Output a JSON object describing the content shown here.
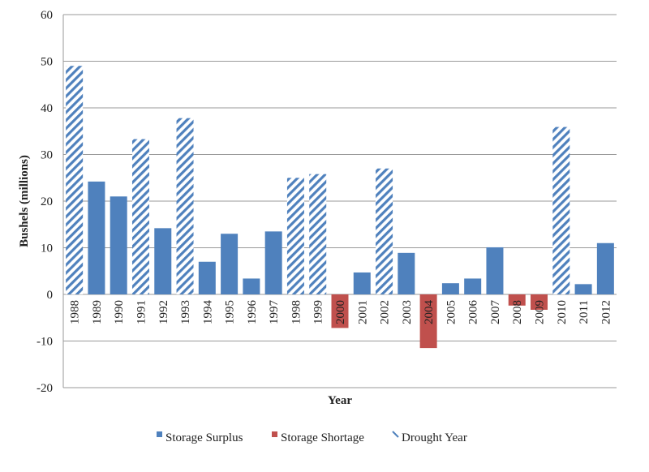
{
  "chart_data": {
    "type": "bar",
    "title": "",
    "xlabel": "Year",
    "ylabel": "Bushels (millions)",
    "ylim": [
      -20,
      60
    ],
    "yticks": [
      60,
      50,
      40,
      30,
      20,
      10,
      0,
      -10,
      -20
    ],
    "grid": true,
    "legend_position": "bottom",
    "categories": [
      "1988",
      "1989",
      "1990",
      "1991",
      "1992",
      "1993",
      "1994",
      "1995",
      "1996",
      "1997",
      "1998",
      "1999",
      "2000",
      "2001",
      "2002",
      "2003",
      "2004",
      "2005",
      "2006",
      "2007",
      "2008",
      "2009",
      "2010",
      "2011",
      "2012"
    ],
    "values": [
      49,
      24.2,
      21,
      33.3,
      14.2,
      37.8,
      7,
      13,
      3.4,
      13.5,
      25,
      25.8,
      -7.2,
      4.7,
      27,
      8.9,
      -11.5,
      2.4,
      3.4,
      10.1,
      -2.4,
      -3.3,
      35.9,
      2.2,
      11
    ],
    "bar_types": [
      "drought",
      "surplus",
      "surplus",
      "drought",
      "surplus",
      "drought",
      "surplus",
      "surplus",
      "surplus",
      "surplus",
      "drought",
      "drought",
      "shortage",
      "surplus",
      "drought",
      "surplus",
      "shortage",
      "surplus",
      "surplus",
      "surplus",
      "shortage",
      "shortage",
      "drought",
      "surplus",
      "surplus"
    ],
    "series": [
      {
        "key": "surplus",
        "name": "Storage Surplus",
        "color": "#4f81bd"
      },
      {
        "key": "shortage",
        "name": "Storage Shortage",
        "color": "#c0504d"
      },
      {
        "key": "drought",
        "name": "Drought Year",
        "color": "#4f81bd"
      }
    ]
  }
}
